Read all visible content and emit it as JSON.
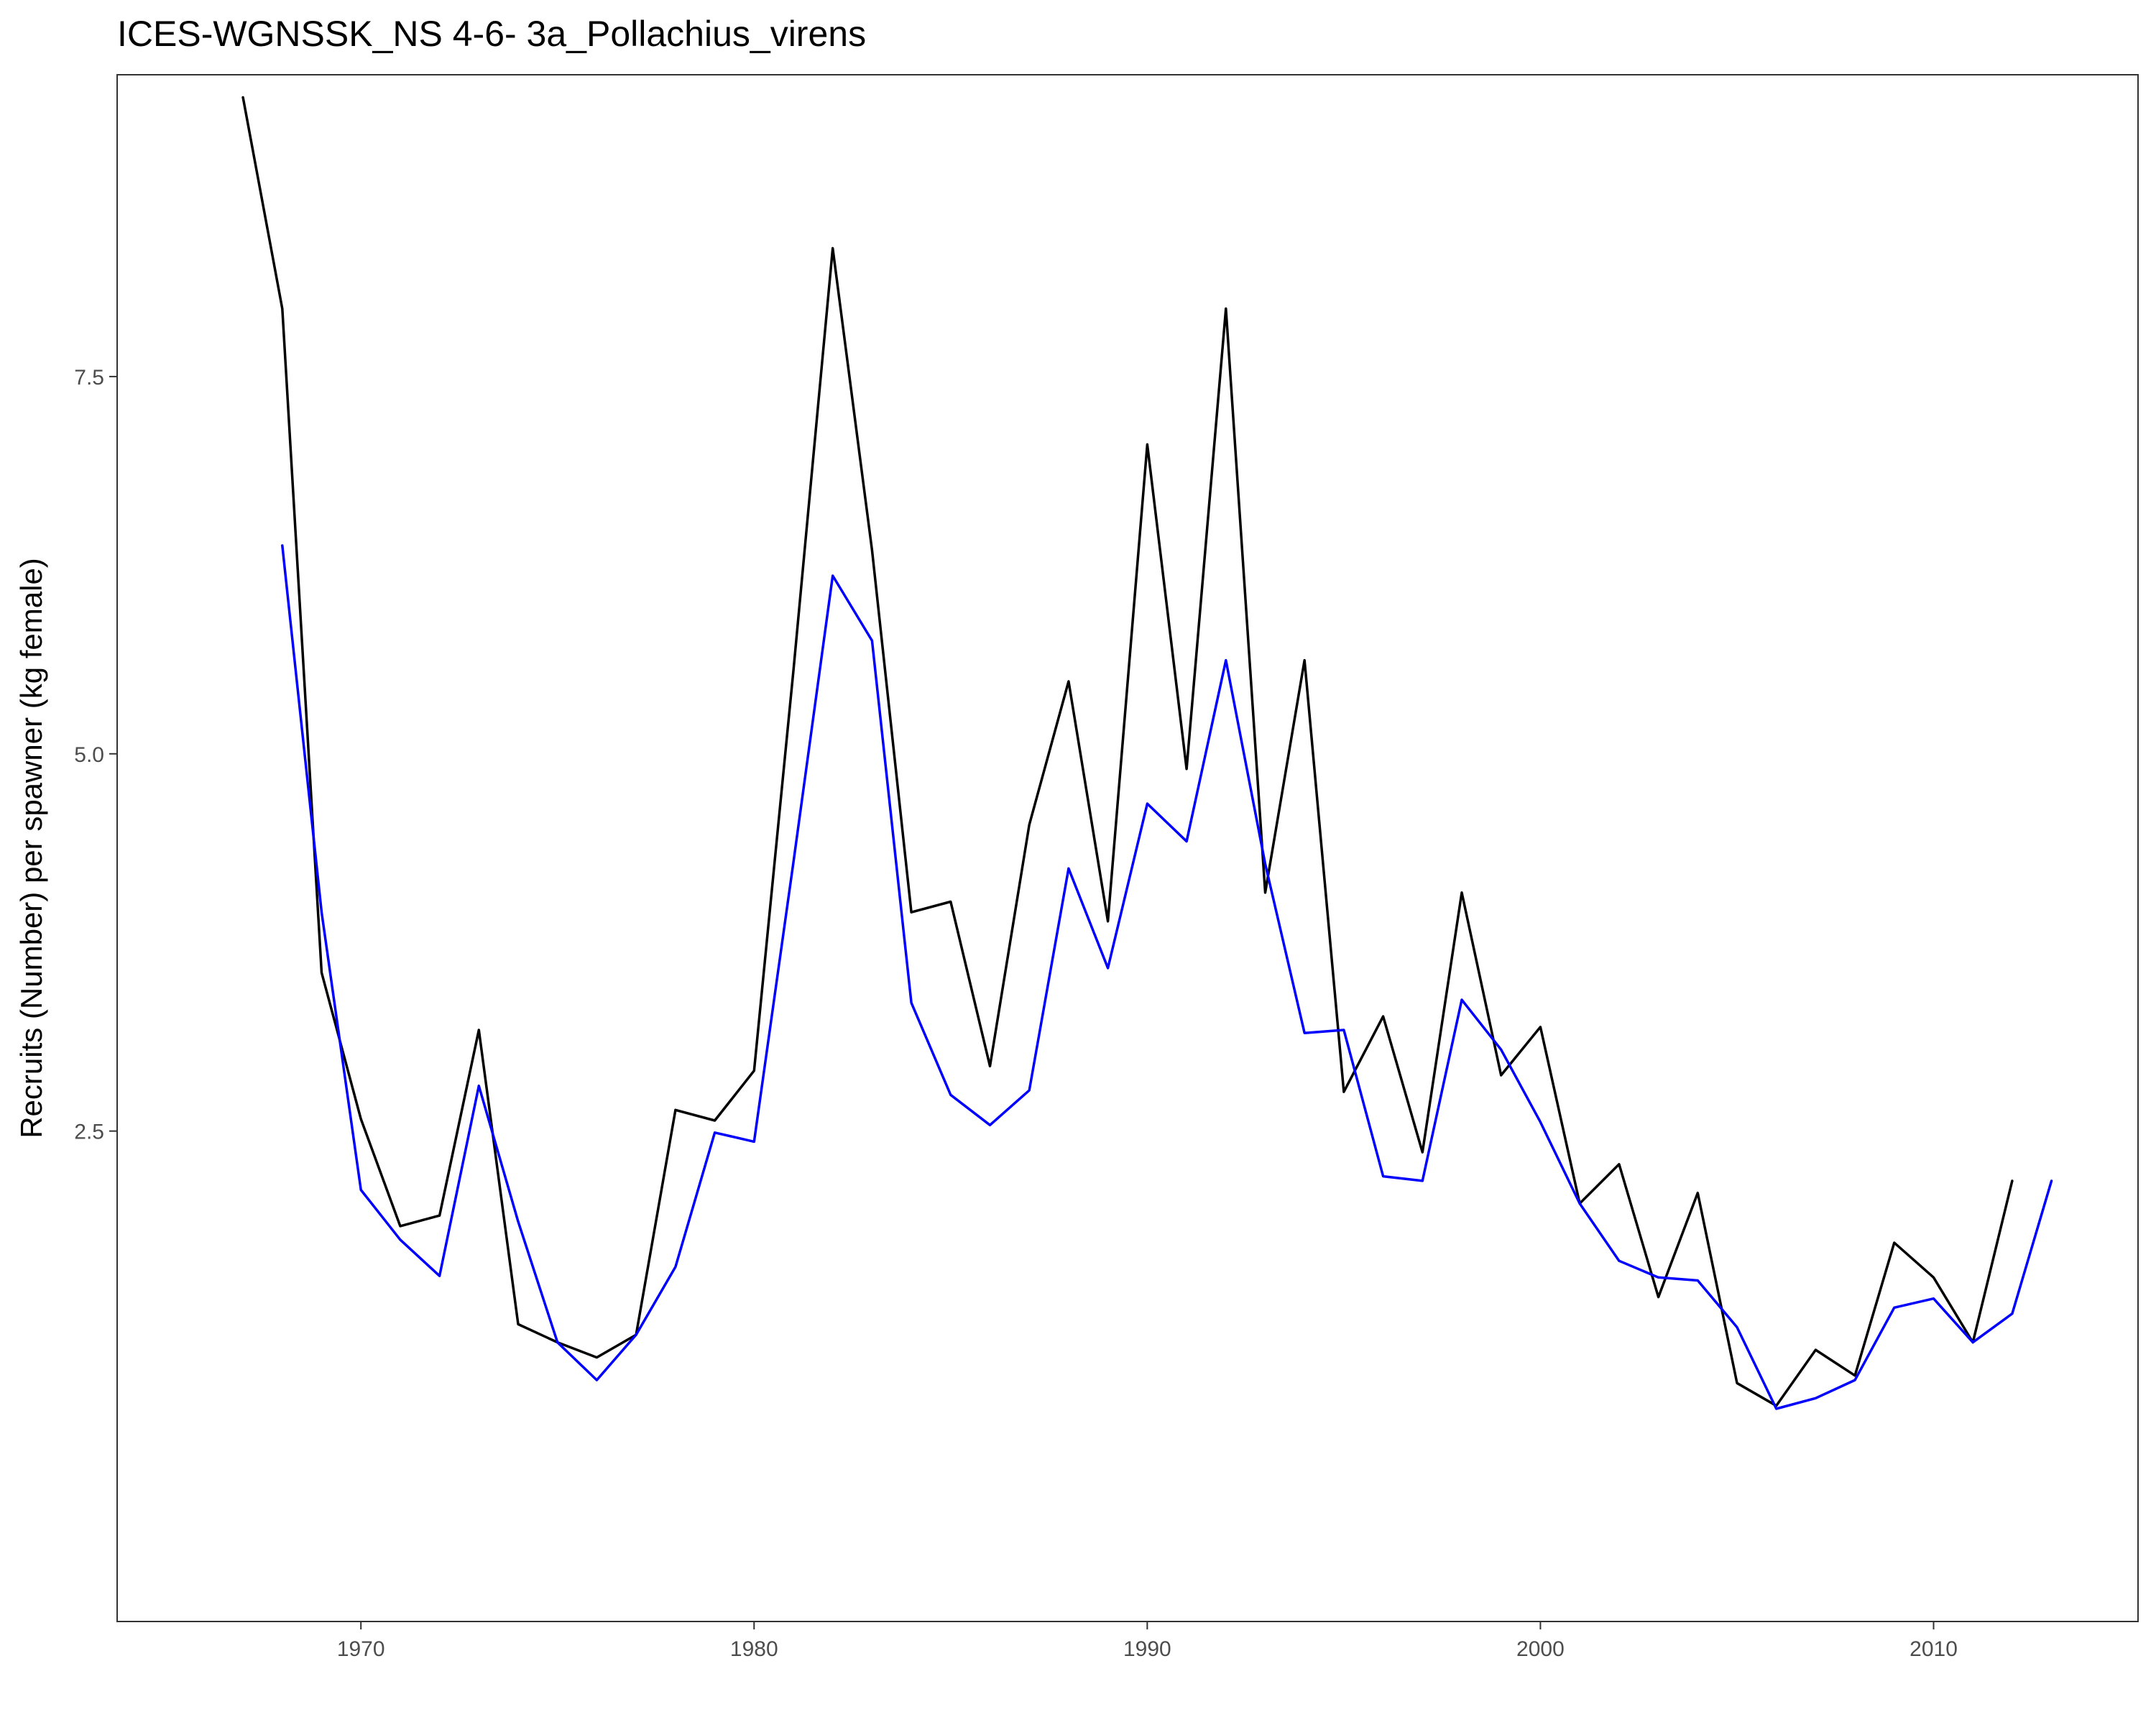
{
  "chart_data": {
    "type": "line",
    "title": "ICES-WGNSSK_NS 4-6- 3a_Pollachius_virens",
    "xlabel": "",
    "ylabel": "Recruits (Number) per spawner (kg female)",
    "xlim": [
      1963.8,
      2015.2
    ],
    "ylim": [
      -0.75,
      9.5
    ],
    "x_ticks": [
      1970,
      1980,
      1990,
      2000,
      2010
    ],
    "x_tick_labels": [
      "1970",
      "1980",
      "1990",
      "2000",
      "2010"
    ],
    "y_ticks": [
      2.5,
      5.0,
      7.5
    ],
    "y_tick_labels": [
      "2.5",
      "5.0",
      "7.5"
    ],
    "grid": false,
    "legend": "none",
    "series": [
      {
        "color": "#000000",
        "x": [
          1967,
          1968,
          1969,
          1970,
          1971,
          1972,
          1973,
          1974,
          1975,
          1976,
          1977,
          1978,
          1979,
          1980,
          1981,
          1982,
          1983,
          1984,
          1985,
          1986,
          1987,
          1988,
          1989,
          1990,
          1991,
          1992,
          1993,
          1994,
          1995,
          1996,
          1997,
          1998,
          1999,
          2000,
          2001,
          2002,
          2003,
          2004,
          2005,
          2006,
          2007,
          2008,
          2009,
          2010,
          2011,
          2012
        ],
        "y": [
          9.35,
          7.95,
          3.55,
          2.58,
          1.87,
          1.94,
          3.17,
          1.22,
          1.1,
          1.0,
          1.15,
          2.64,
          2.57,
          2.9,
          5.55,
          8.35,
          6.35,
          3.95,
          4.02,
          2.93,
          4.53,
          5.48,
          3.89,
          7.05,
          4.9,
          7.95,
          4.08,
          5.62,
          2.76,
          3.26,
          2.36,
          4.08,
          2.87,
          3.19,
          2.02,
          2.28,
          1.4,
          2.09,
          0.83,
          0.68,
          1.05,
          0.88,
          1.76,
          1.53,
          1.1,
          2.17
        ]
      },
      {
        "color": "#0000ff",
        "x": [
          1968,
          1969,
          1970,
          1971,
          1972,
          1973,
          1974,
          1975,
          1976,
          1977,
          1978,
          1979,
          1980,
          1981,
          1982,
          1983,
          1984,
          1985,
          1986,
          1987,
          1988,
          1989,
          1990,
          1991,
          1992,
          1993,
          1994,
          1995,
          1996,
          1997,
          1998,
          1999,
          2000,
          2001,
          2002,
          2003,
          2004,
          2005,
          2006,
          2007,
          2008,
          2009,
          2010,
          2011,
          2012,
          2013
        ],
        "y": [
          6.38,
          3.95,
          2.11,
          1.78,
          1.54,
          2.8,
          1.9,
          1.1,
          0.85,
          1.15,
          1.6,
          2.49,
          2.43,
          4.28,
          6.18,
          5.75,
          3.35,
          2.74,
          2.54,
          2.77,
          4.24,
          3.58,
          4.67,
          4.42,
          5.62,
          4.27,
          3.15,
          3.17,
          2.2,
          2.17,
          3.37,
          3.04,
          2.56,
          2.02,
          1.64,
          1.53,
          1.51,
          1.2,
          0.66,
          0.73,
          0.85,
          1.33,
          1.39,
          1.1,
          1.29,
          2.17
        ]
      }
    ]
  }
}
